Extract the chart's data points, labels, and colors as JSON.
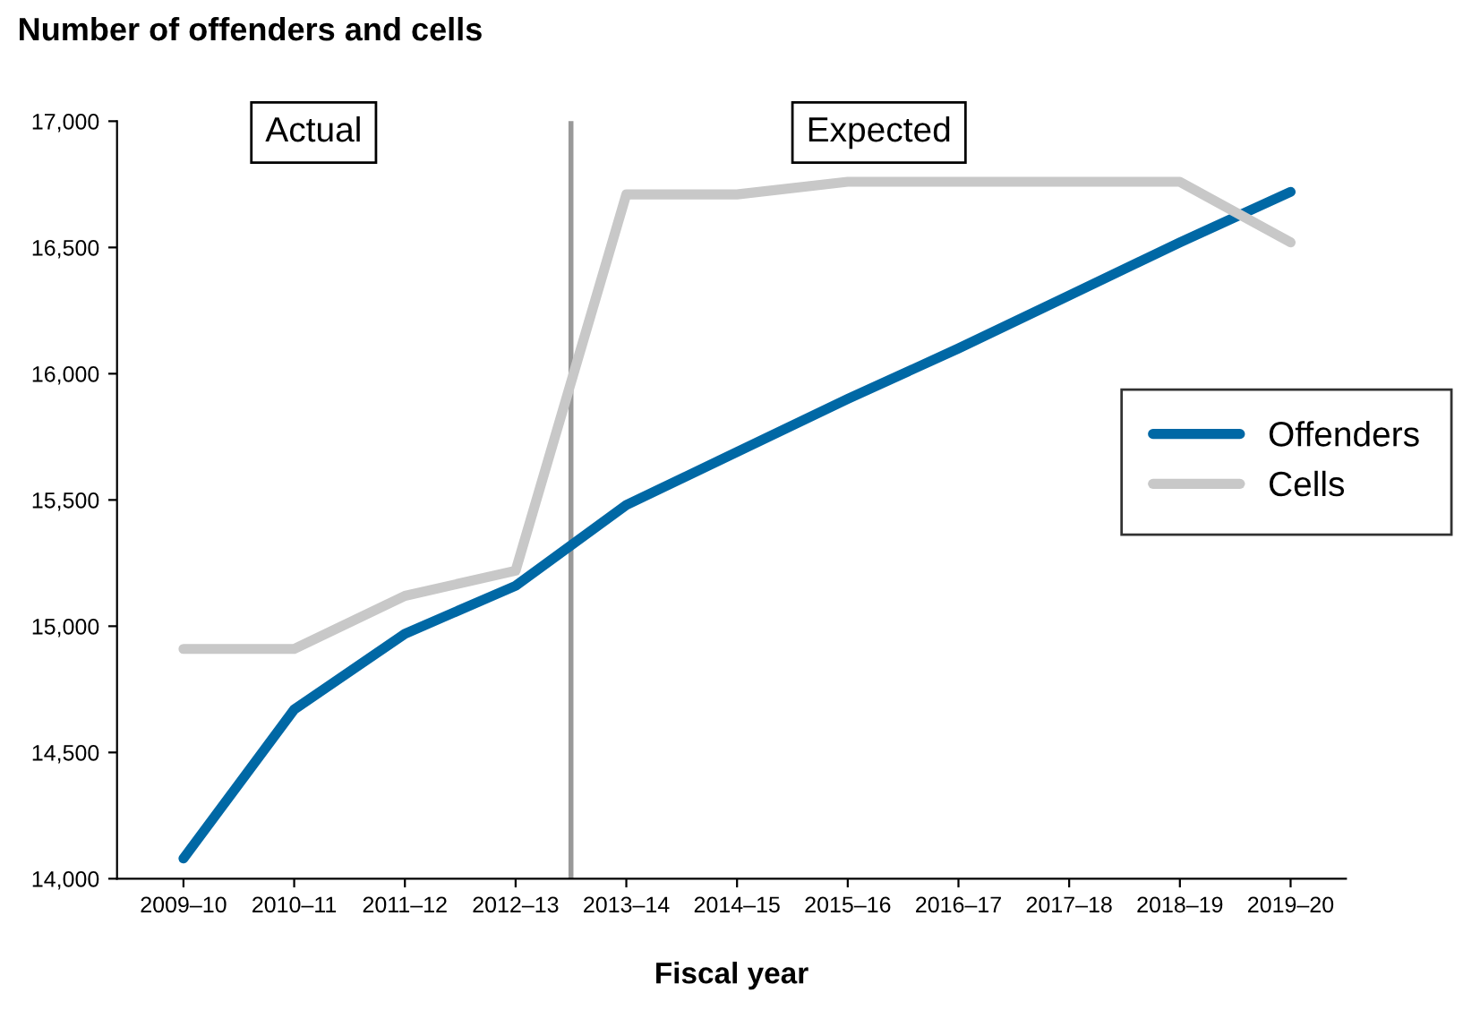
{
  "chart_data": {
    "type": "line",
    "title": "Number of offenders and cells",
    "xlabel": "Fiscal year",
    "categories": [
      "2009–10",
      "2010–11",
      "2011–12",
      "2012–13",
      "2013–14",
      "2014–15",
      "2015–16",
      "2016–17",
      "2017–18",
      "2018–19",
      "2019–20"
    ],
    "series": [
      {
        "name": "Offenders",
        "color": "#0068a5",
        "values": [
          14080,
          14670,
          14970,
          15160,
          15480,
          15690,
          15900,
          16100,
          16310,
          16520,
          16720
        ]
      },
      {
        "name": "Cells",
        "color": "#c8c8c8",
        "values": [
          14910,
          14910,
          15120,
          15220,
          16710,
          16710,
          16760,
          16760,
          16760,
          16760,
          16520
        ]
      }
    ],
    "ylim": [
      14000,
      17000
    ],
    "yticks": [
      {
        "value": 14000,
        "label": "14,000"
      },
      {
        "value": 14500,
        "label": "14,500"
      },
      {
        "value": 15000,
        "label": "15,000"
      },
      {
        "value": 15500,
        "label": "15,500"
      },
      {
        "value": 16000,
        "label": "16,000"
      },
      {
        "value": 16500,
        "label": "16,500"
      },
      {
        "value": 17000,
        "label": "17,000"
      }
    ],
    "annotations": [
      "Actual",
      "Expected"
    ],
    "grid": false,
    "legend": "right",
    "marker": "none",
    "line_style": "solid"
  }
}
